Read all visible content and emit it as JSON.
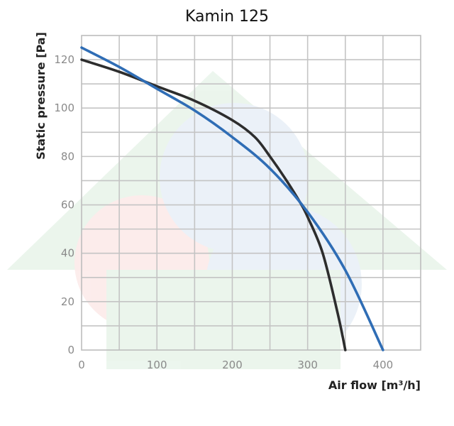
{
  "chart_data": {
    "type": "line",
    "title": "Kamin 125",
    "xlabel": "Air flow [m³/h]",
    "ylabel": "Static pressure [Pa]",
    "xlim": [
      0,
      450
    ],
    "ylim": [
      0,
      130
    ],
    "x_ticks": [
      "0",
      "100",
      "200",
      "300",
      "400"
    ],
    "y_ticks": [
      "0",
      "20",
      "40",
      "60",
      "80",
      "100",
      "120"
    ],
    "grid": true,
    "series": [
      {
        "color": "#2d2d2d",
        "x": [
          0,
          50,
          100,
          150,
          200,
          230,
          250,
          270,
          290,
          300,
          320,
          340,
          350
        ],
        "y": [
          120,
          115,
          109,
          103,
          95,
          88,
          80,
          71,
          61,
          55,
          40,
          15,
          0
        ]
      },
      {
        "color": "#2f6db5",
        "x": [
          0,
          50,
          100,
          150,
          200,
          250,
          300,
          350,
          400
        ],
        "y": [
          125,
          117,
          108,
          99,
          88,
          75,
          57,
          33,
          0
        ]
      }
    ]
  }
}
